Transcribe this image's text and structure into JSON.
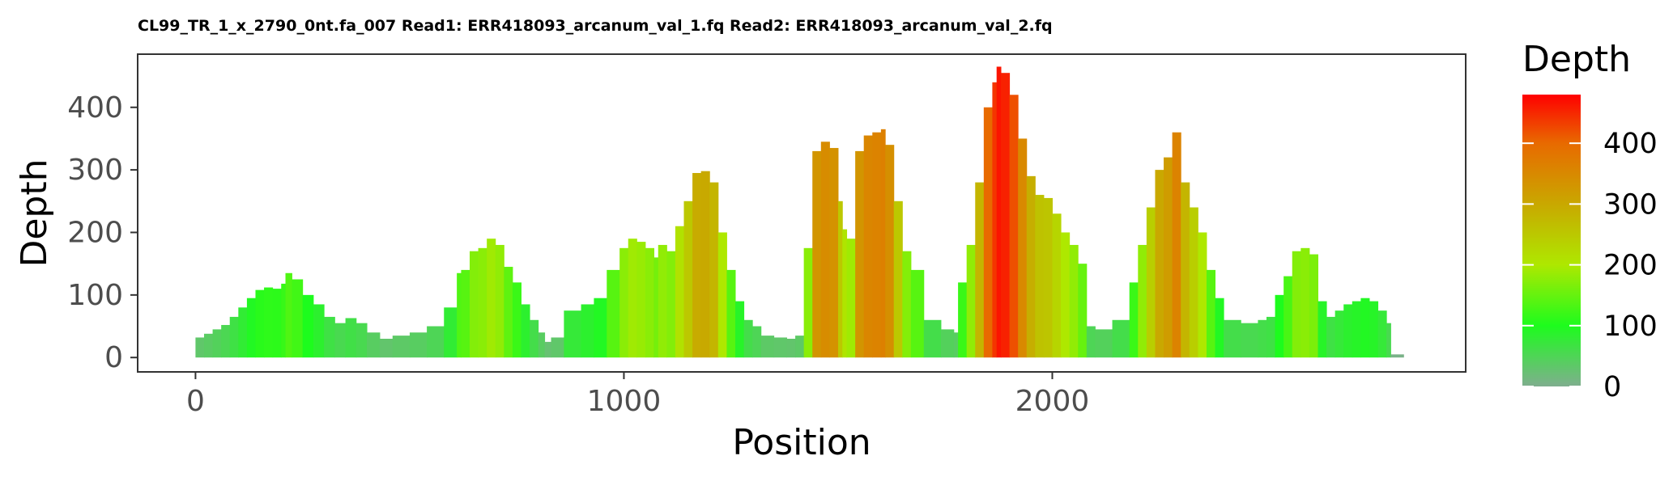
{
  "chart_data": {
    "type": "area",
    "title": "CL99_TR_1_x_2790_0nt.fa_007 Read1: ERR418093_arcanum_val_1.fq Read2: ERR418093_arcanum_val_2.fq",
    "xlabel": "Position",
    "ylabel": "Depth",
    "xlim": [
      -135,
      2965
    ],
    "ylim": [
      -23,
      485
    ],
    "x_ticks": [
      0,
      1000,
      2000
    ],
    "x_tick_labels": [
      "0",
      "1000",
      "2000"
    ],
    "y_ticks": [
      0,
      100,
      200,
      300,
      400
    ],
    "y_tick_labels": [
      "0",
      "100",
      "200",
      "300",
      "400"
    ],
    "grid": false,
    "legend": {
      "title": "Depth",
      "position": "right",
      "range": [
        0,
        480
      ],
      "ticks": [
        0,
        100,
        200,
        300,
        400
      ],
      "tick_labels": [
        "0",
        "100",
        "200",
        "300",
        "400"
      ],
      "colors": [
        {
          "value": 0,
          "color": "#7fae8e"
        },
        {
          "value": 100,
          "color": "#1dfc1d"
        },
        {
          "value": 200,
          "color": "#aee800"
        },
        {
          "value": 300,
          "color": "#c9a800"
        },
        {
          "value": 400,
          "color": "#e86a00"
        },
        {
          "value": 480,
          "color": "#ff0000"
        }
      ]
    },
    "x": [
      0,
      20,
      40,
      60,
      80,
      100,
      120,
      140,
      160,
      180,
      200,
      210,
      225,
      250,
      275,
      300,
      325,
      350,
      375,
      400,
      430,
      460,
      500,
      540,
      580,
      610,
      620,
      640,
      660,
      680,
      700,
      720,
      740,
      760,
      780,
      800,
      815,
      830,
      860,
      900,
      930,
      960,
      990,
      1010,
      1030,
      1050,
      1070,
      1080,
      1100,
      1120,
      1140,
      1160,
      1180,
      1200,
      1220,
      1240,
      1260,
      1280,
      1300,
      1320,
      1350,
      1380,
      1400,
      1420,
      1440,
      1460,
      1480,
      1500,
      1510,
      1520,
      1540,
      1560,
      1580,
      1600,
      1610,
      1630,
      1650,
      1670,
      1700,
      1740,
      1770,
      1780,
      1800,
      1820,
      1840,
      1860,
      1870,
      1880,
      1900,
      1920,
      1940,
      1960,
      1980,
      2000,
      2020,
      2040,
      2060,
      2080,
      2100,
      2140,
      2180,
      2200,
      2220,
      2240,
      2260,
      2280,
      2300,
      2320,
      2340,
      2360,
      2380,
      2400,
      2440,
      2480,
      2500,
      2520,
      2540,
      2560,
      2580,
      2600,
      2620,
      2640,
      2660,
      2680,
      2700,
      2720,
      2740,
      2760,
      2780,
      2790
    ],
    "values": [
      32,
      38,
      45,
      52,
      65,
      80,
      95,
      108,
      112,
      110,
      118,
      135,
      125,
      100,
      85,
      65,
      55,
      63,
      55,
      40,
      30,
      35,
      40,
      50,
      80,
      135,
      140,
      170,
      175,
      190,
      180,
      145,
      120,
      85,
      60,
      40,
      25,
      32,
      75,
      85,
      95,
      140,
      175,
      190,
      185,
      175,
      160,
      180,
      170,
      210,
      250,
      295,
      298,
      280,
      200,
      140,
      90,
      60,
      50,
      35,
      32,
      30,
      35,
      175,
      330,
      345,
      335,
      250,
      205,
      190,
      330,
      355,
      360,
      365,
      340,
      250,
      170,
      140,
      60,
      45,
      40,
      120,
      180,
      280,
      400,
      440,
      465,
      455,
      420,
      350,
      290,
      260,
      255,
      230,
      200,
      180,
      150,
      50,
      45,
      60,
      120,
      180,
      240,
      300,
      320,
      360,
      280,
      240,
      200,
      140,
      95,
      60,
      55,
      60,
      65,
      100,
      130,
      170,
      175,
      165,
      90,
      65,
      75,
      85,
      90,
      95,
      90,
      75,
      55,
      5
    ]
  }
}
